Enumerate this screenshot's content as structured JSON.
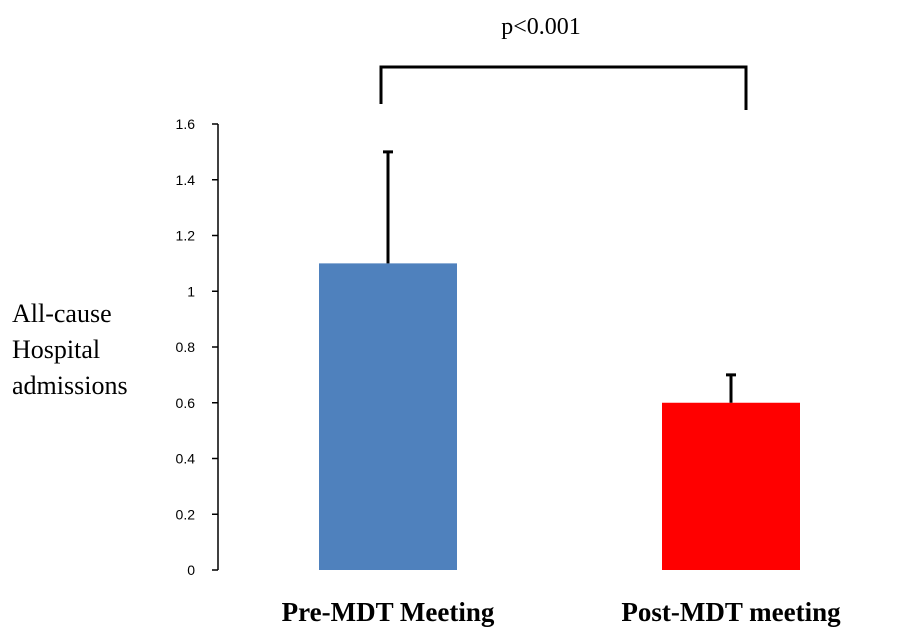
{
  "chart_data": {
    "type": "bar",
    "categories": [
      "Pre-MDT Meeting",
      "Post-MDT meeting"
    ],
    "values": [
      1.1,
      0.6
    ],
    "error_upper": [
      0.4,
      0.1
    ],
    "colors": [
      "#4f81bd",
      "#ff0000"
    ],
    "ylabel": [
      "All-cause",
      "Hospital",
      "admissions"
    ],
    "ylim": [
      0,
      1.6
    ],
    "yticks": [
      0,
      0.2,
      0.4,
      0.6,
      0.8,
      1,
      1.2,
      1.4,
      1.6
    ],
    "ytick_labels": [
      "0",
      "0.2",
      "0.4",
      "0.6",
      "0.8",
      "1",
      "1.2",
      "1.4",
      "1.6"
    ],
    "annotation": "p<0.001",
    "grid": false,
    "legend": "none"
  }
}
